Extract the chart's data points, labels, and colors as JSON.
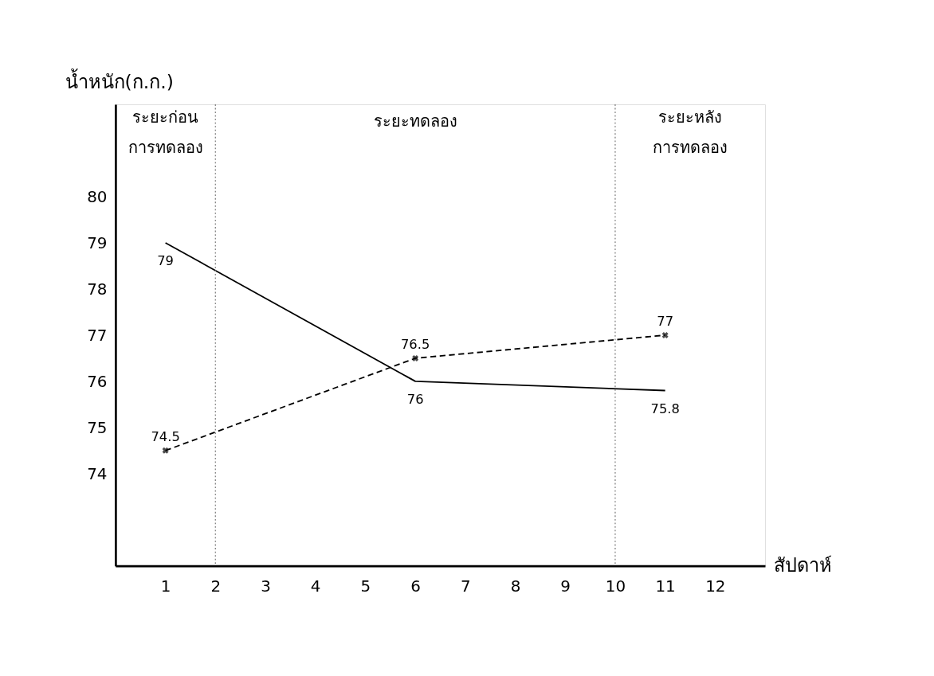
{
  "chart_data": {
    "type": "line",
    "xlabel": "สัปดาห์",
    "ylabel": "น้ำหนัก(ก.ก.)",
    "xlim": [
      0,
      13
    ],
    "xticks": [
      1,
      2,
      3,
      4,
      5,
      6,
      7,
      8,
      9,
      10,
      11,
      12
    ],
    "ylim": [
      72,
      82
    ],
    "yticks": [
      74,
      75,
      76,
      77,
      78,
      79,
      80
    ],
    "series": [
      {
        "color": "#000000",
        "line_style": "solid",
        "marker": "none",
        "x": [
          1,
          6,
          11
        ],
        "values": [
          79,
          76,
          75.8
        ]
      },
      {
        "color": "#000000",
        "line_style": "dashed",
        "marker": "cross",
        "x": [
          1,
          6,
          11
        ],
        "values": [
          74.5,
          76.5,
          77
        ]
      }
    ],
    "data_labels": true,
    "ref_lines": [
      {
        "axis": "x",
        "value": 2,
        "color": "#888888",
        "line_style": "dotted"
      },
      {
        "axis": "x",
        "value": 10,
        "color": "#888888",
        "line_style": "dotted"
      }
    ],
    "annotations": [
      "ระยะก่อน\nการทดลอง",
      "ระยะทดลอง",
      "ระยะหลัง\nการทดลอง"
    ],
    "grid": false
  }
}
